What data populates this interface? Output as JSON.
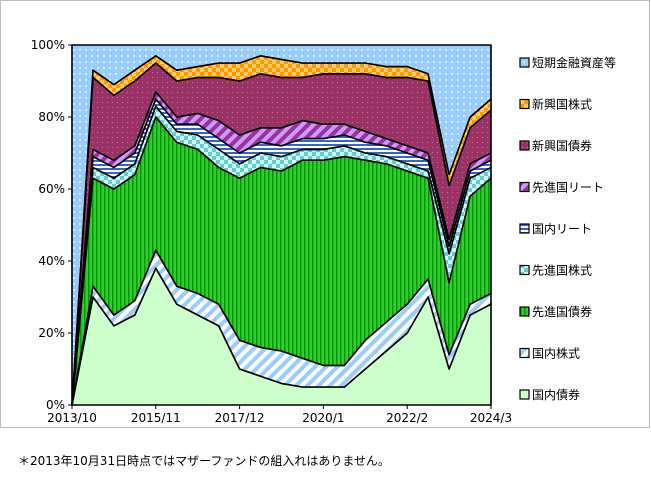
{
  "footnote": "＊2013年10月31日時点ではマザーファンドの組入れはありません。",
  "chart_data": {
    "type": "area",
    "stacked": true,
    "percent": true,
    "ylim": [
      0,
      100
    ],
    "y_ticks": [
      "0%",
      "20%",
      "40%",
      "60%",
      "80%",
      "100%"
    ],
    "x_ticks": [
      "2013/10",
      "2015/11",
      "2017/12",
      "2020/1",
      "2022/2",
      "2024/3"
    ],
    "grid": false,
    "legend_position": "right",
    "colors": {
      "国内債券": "#ccffcc",
      "国内株式": "#99ccff",
      "先進国債券": "#33cc33",
      "先進国株式": "#66cccc",
      "国内リート": "#3366cc",
      "先進国リート": "#993399",
      "新興国債券": "#993366",
      "新興国株式": "#ff9900",
      "短期金融資産等": "#99ccff"
    },
    "categories": [
      "2013/10",
      "2014/4",
      "2014/10",
      "2015/4",
      "2015/11",
      "2016/5",
      "2016/11",
      "2017/6",
      "2017/12",
      "2018/6",
      "2018/12",
      "2019/7",
      "2020/1",
      "2020/7",
      "2021/1",
      "2021/8",
      "2022/2",
      "2022/8",
      "2023/2",
      "2023/9",
      "2024/3"
    ],
    "series": [
      {
        "name": "国内債券",
        "values": [
          0,
          30,
          22,
          25,
          38,
          28,
          25,
          22,
          10,
          8,
          6,
          5,
          5,
          5,
          10,
          15,
          20,
          30,
          10,
          25,
          28
        ]
      },
      {
        "name": "国内株式",
        "values": [
          0,
          3,
          3,
          4,
          5,
          5,
          6,
          6,
          8,
          8,
          9,
          8,
          6,
          6,
          8,
          8,
          8,
          5,
          4,
          3,
          3
        ]
      },
      {
        "name": "先進国債券",
        "values": [
          0,
          30,
          35,
          35,
          37,
          40,
          40,
          38,
          45,
          50,
          50,
          55,
          57,
          58,
          50,
          44,
          37,
          28,
          20,
          30,
          32
        ]
      },
      {
        "name": "先進国株式",
        "values": [
          0,
          3,
          3,
          3,
          3,
          3,
          4,
          5,
          4,
          4,
          4,
          3,
          3,
          3,
          2,
          2,
          2,
          2,
          8,
          5,
          3
        ]
      },
      {
        "name": "国内リート",
        "values": [
          0,
          3,
          3,
          3,
          2,
          2,
          3,
          3,
          3,
          3,
          3,
          3,
          3,
          3,
          3,
          3,
          3,
          3,
          2,
          2,
          2
        ]
      },
      {
        "name": "先進国リート",
        "values": [
          0,
          2,
          2,
          2,
          2,
          2,
          3,
          5,
          5,
          4,
          5,
          5,
          4,
          3,
          3,
          2,
          2,
          2,
          2,
          2,
          2
        ]
      },
      {
        "name": "新興国債券",
        "values": [
          0,
          20,
          18,
          18,
          8,
          10,
          10,
          12,
          15,
          15,
          14,
          12,
          14,
          14,
          16,
          17,
          19,
          20,
          15,
          10,
          12
        ]
      },
      {
        "name": "新興国株式",
        "values": [
          0,
          2,
          3,
          3,
          2,
          3,
          3,
          4,
          5,
          5,
          5,
          4,
          3,
          3,
          3,
          3,
          3,
          2,
          3,
          3,
          3
        ]
      },
      {
        "name": "短期金融資産等",
        "values": [
          100,
          7,
          11,
          7,
          3,
          7,
          6,
          5,
          5,
          3,
          4,
          5,
          5,
          5,
          5,
          6,
          6,
          8,
          36,
          20,
          15
        ]
      }
    ],
    "legend": [
      "短期金融資産等",
      "新興国株式",
      "新興国債券",
      "先進国リート",
      "国内リート",
      "先進国株式",
      "先進国債券",
      "国内株式",
      "国内債券"
    ]
  }
}
